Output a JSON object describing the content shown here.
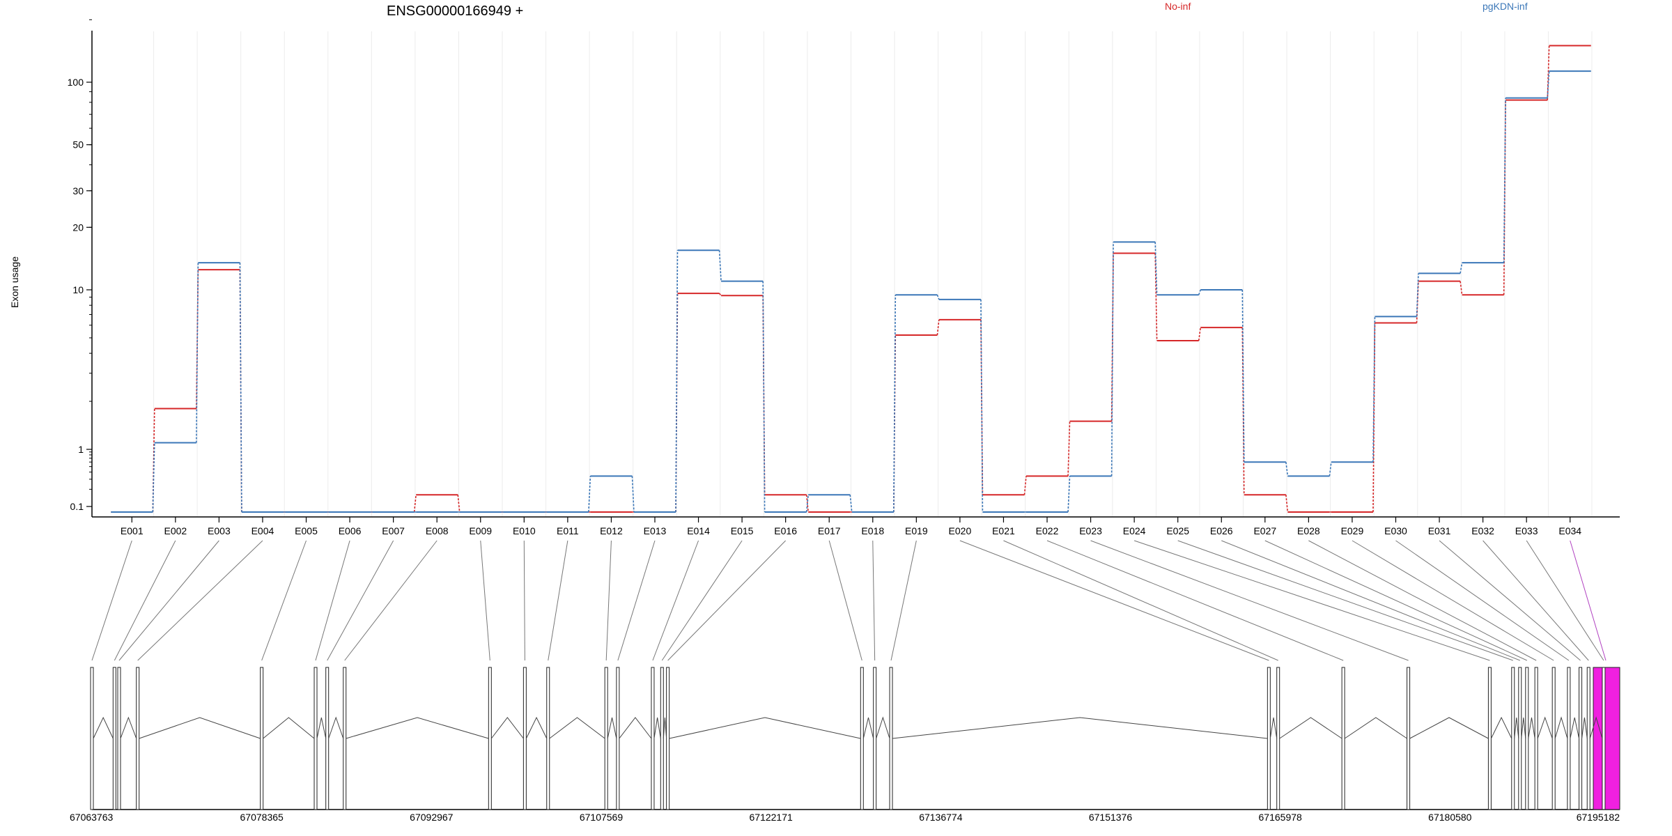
{
  "chart_data": {
    "type": "line",
    "title": "ENSG00000166949 +",
    "ylabel": "Exon usage",
    "xlabel": "",
    "y_scale": "log",
    "ylim": [
      0.07,
      200
    ],
    "y_ticks": [
      {
        "value": 0.1,
        "label": "0.1"
      },
      {
        "value": 1,
        "label": "1"
      },
      {
        "value": 10,
        "label": "10"
      },
      {
        "value": 20,
        "label": "20"
      },
      {
        "value": 30,
        "label": "30"
      },
      {
        "value": 50,
        "label": "50"
      },
      {
        "value": 100,
        "label": "100"
      }
    ],
    "grid": true,
    "legend_position": "top",
    "categories": [
      "E001",
      "E002",
      "E003",
      "E004",
      "E005",
      "E006",
      "E007",
      "E008",
      "E009",
      "E010",
      "E011",
      "E012",
      "E013",
      "E014",
      "E015",
      "E016",
      "E017",
      "E018",
      "E019",
      "E020",
      "E021",
      "E022",
      "E023",
      "E024",
      "E025",
      "E026",
      "E027",
      "E028",
      "E029",
      "E030",
      "E031",
      "E032",
      "E033",
      "E034"
    ],
    "series": [
      {
        "name": "No-inf",
        "color": "#d62728",
        "values": [
          0.08,
          1.8,
          12.5,
          0.08,
          0.08,
          0.08,
          0.08,
          0.16,
          0.08,
          0.08,
          0.08,
          0.08,
          0.08,
          9.5,
          9.2,
          0.16,
          0.08,
          0.08,
          5.2,
          6.5,
          0.16,
          0.34,
          1.5,
          15,
          4.8,
          5.8,
          0.16,
          0.08,
          0.08,
          6.2,
          11,
          9.3,
          82,
          150
        ]
      },
      {
        "name": "pgKDN-inf",
        "color": "#3b77b8",
        "values": [
          0.08,
          1.1,
          13.5,
          0.08,
          0.08,
          0.08,
          0.08,
          0.08,
          0.08,
          0.08,
          0.08,
          0.34,
          0.08,
          15.5,
          11,
          0.08,
          0.16,
          0.08,
          9.3,
          8.7,
          0.08,
          0.08,
          0.34,
          17,
          9.3,
          10,
          0.6,
          0.34,
          0.6,
          6.8,
          12,
          13.5,
          84,
          113
        ]
      }
    ],
    "gene_model": {
      "coordinate_ticks": [
        "67063763",
        "67078365",
        "67092967",
        "67107569",
        "67122171",
        "67136774",
        "67151376",
        "67165978",
        "67180580",
        "67195182"
      ],
      "coordinate_range": [
        67063763,
        67195182
      ],
      "exon_positions": [
        67063763,
        67065700,
        67066100,
        67067700,
        67078365,
        67083000,
        67084000,
        67085500,
        67098000,
        67101000,
        67103000,
        67108000,
        67109000,
        67112000,
        67112800,
        67113300,
        67130000,
        67131100,
        67132500,
        67165000,
        67165800,
        67171400,
        67177000,
        67184000,
        67186000,
        67186600,
        67187200,
        67188000,
        67189500,
        67190800,
        67191800,
        67192500,
        67193800,
        67195182
      ],
      "highlight_color": "#f020e0",
      "shaded_color": "#d0d0d0"
    }
  }
}
